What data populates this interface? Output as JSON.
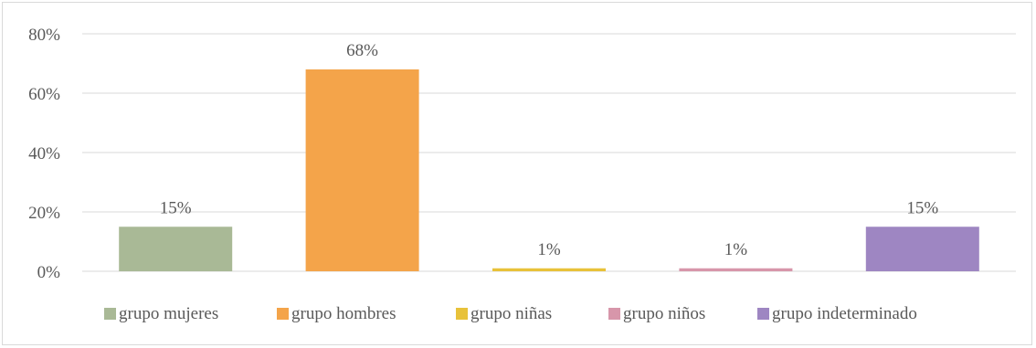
{
  "chart_data": {
    "type": "bar",
    "categories": [
      "grupo mujeres",
      "grupo hombres",
      "grupo niñas",
      "grupo niños",
      "grupo indeterminado"
    ],
    "values": [
      15,
      68,
      1,
      1,
      15
    ],
    "data_labels": [
      "15%",
      "68%",
      "1%",
      "1%",
      "15%"
    ],
    "colors": [
      "#a9b996",
      "#f4a44a",
      "#e8c23a",
      "#d796aa",
      "#9e86c2"
    ],
    "yticks": [
      "0%",
      "20%",
      "40%",
      "60%",
      "80%"
    ],
    "ylim": [
      0,
      80
    ],
    "grid": true,
    "legend_position": "bottom",
    "title": "",
    "xlabel": "",
    "ylabel": ""
  }
}
